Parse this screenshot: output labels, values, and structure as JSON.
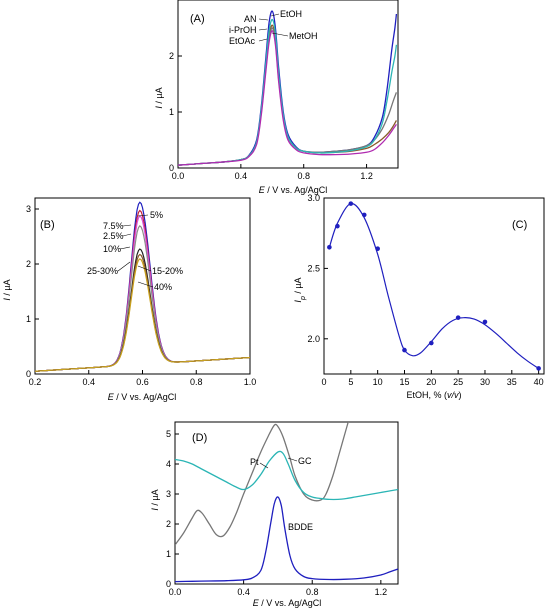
{
  "chart_data": [
    {
      "panel": "(A)",
      "type": "line",
      "xlim": [
        0.0,
        1.4
      ],
      "ylim": [
        0.0,
        3.0
      ],
      "xticks": [
        "0.0",
        "0.4",
        "0.8",
        "1.2"
      ],
      "yticks": [
        "0",
        "1",
        "2"
      ],
      "xlabel": {
        "var": "E",
        "rest": " / V vs. Ag/AgCl"
      },
      "ylabel": {
        "var": "I",
        "rest": " / µA"
      },
      "series": [
        {
          "name": "EtOH",
          "color": "#1f1fbf",
          "x": [
            0.0,
            0.1,
            0.2,
            0.3,
            0.4,
            0.45,
            0.5,
            0.53,
            0.56,
            0.58,
            0.6,
            0.62,
            0.64,
            0.67,
            0.7,
            0.75,
            0.8,
            0.9,
            1.0,
            1.1,
            1.2,
            1.25,
            1.3,
            1.33,
            1.36,
            1.38,
            1.39
          ],
          "y": [
            0.05,
            0.07,
            0.09,
            0.11,
            0.15,
            0.22,
            0.5,
            1.1,
            2.0,
            2.6,
            2.8,
            2.5,
            1.8,
            1.0,
            0.6,
            0.38,
            0.3,
            0.28,
            0.3,
            0.33,
            0.4,
            0.55,
            0.9,
            1.4,
            2.1,
            2.5,
            2.75
          ]
        },
        {
          "name": "AN",
          "color": "#8a5a2b",
          "x": [
            0.0,
            0.1,
            0.2,
            0.3,
            0.4,
            0.45,
            0.5,
            0.53,
            0.56,
            0.58,
            0.6,
            0.62,
            0.64,
            0.67,
            0.7,
            0.75,
            0.8,
            0.9,
            1.0,
            1.1,
            1.2,
            1.25,
            1.3,
            1.34,
            1.37,
            1.39
          ],
          "y": [
            0.05,
            0.07,
            0.09,
            0.11,
            0.15,
            0.21,
            0.45,
            1.0,
            1.85,
            2.35,
            2.55,
            2.3,
            1.65,
            0.9,
            0.55,
            0.36,
            0.3,
            0.27,
            0.28,
            0.3,
            0.35,
            0.42,
            0.52,
            0.63,
            0.75,
            0.85
          ]
        },
        {
          "name": "i-PrOH",
          "color": "#777777",
          "x": [
            0.0,
            0.1,
            0.2,
            0.3,
            0.4,
            0.45,
            0.5,
            0.53,
            0.56,
            0.58,
            0.6,
            0.62,
            0.64,
            0.67,
            0.7,
            0.75,
            0.8,
            0.9,
            1.0,
            1.1,
            1.2,
            1.25,
            1.3,
            1.34,
            1.37,
            1.39
          ],
          "y": [
            0.05,
            0.07,
            0.09,
            0.11,
            0.15,
            0.21,
            0.45,
            1.0,
            1.8,
            2.3,
            2.5,
            2.25,
            1.6,
            0.9,
            0.55,
            0.36,
            0.3,
            0.28,
            0.3,
            0.33,
            0.4,
            0.5,
            0.7,
            0.95,
            1.2,
            1.35
          ]
        },
        {
          "name": "MetOH",
          "color": "#2bb5b5",
          "x": [
            0.0,
            0.1,
            0.2,
            0.3,
            0.4,
            0.45,
            0.5,
            0.53,
            0.56,
            0.58,
            0.6,
            0.62,
            0.64,
            0.67,
            0.7,
            0.75,
            0.8,
            0.9,
            1.0,
            1.1,
            1.2,
            1.25,
            1.3,
            1.33,
            1.36,
            1.38,
            1.39
          ],
          "y": [
            0.05,
            0.07,
            0.09,
            0.11,
            0.15,
            0.21,
            0.46,
            1.05,
            1.9,
            2.45,
            2.65,
            2.4,
            1.7,
            0.95,
            0.56,
            0.36,
            0.3,
            0.27,
            0.28,
            0.31,
            0.38,
            0.5,
            0.8,
            1.2,
            1.7,
            2.0,
            2.2
          ]
        },
        {
          "name": "EtOAc",
          "color": "#b02bb0",
          "x": [
            0.0,
            0.1,
            0.2,
            0.3,
            0.4,
            0.45,
            0.5,
            0.53,
            0.56,
            0.58,
            0.6,
            0.62,
            0.64,
            0.67,
            0.7,
            0.75,
            0.8,
            0.9,
            1.0,
            1.1,
            1.2,
            1.25,
            1.3,
            1.34,
            1.37,
            1.39
          ],
          "y": [
            0.05,
            0.07,
            0.09,
            0.11,
            0.14,
            0.2,
            0.42,
            0.95,
            1.75,
            2.25,
            2.45,
            2.2,
            1.55,
            0.85,
            0.5,
            0.33,
            0.27,
            0.24,
            0.24,
            0.25,
            0.28,
            0.33,
            0.45,
            0.58,
            0.7,
            0.78
          ]
        }
      ],
      "annotations": [
        "AN",
        "EtOH",
        "i-PrOH",
        "MetOH",
        "EtOAc"
      ]
    },
    {
      "panel": "(B)",
      "type": "line",
      "xlim": [
        0.2,
        1.0
      ],
      "ylim": [
        0.0,
        3.2
      ],
      "xticks": [
        "0.2",
        "0.4",
        "0.6",
        "0.8",
        "1.0"
      ],
      "yticks": [
        "0",
        "1",
        "2",
        "3"
      ],
      "xlabel": {
        "var": "E",
        "rest": " / V vs. Ag/AgCl"
      },
      "ylabel": {
        "var": "I",
        "rest": " / µA"
      },
      "series": [
        {
          "name": "5%",
          "color": "#1f1fbf",
          "peak": 3.05
        },
        {
          "name": "7.5%",
          "color": "#c41e3a",
          "peak": 2.9
        },
        {
          "name": "2.5%",
          "color": "#d94fd9",
          "peak": 2.8
        },
        {
          "name": "10%",
          "color": "#8c8c8c",
          "peak": 2.62
        },
        {
          "name": "25-30%",
          "color": "#222222",
          "peak": 2.2
        },
        {
          "name": "15-20%",
          "color": "#8a5a2b",
          "peak": 2.1
        },
        {
          "name": "40%",
          "color": "#c8a21e",
          "peak": 2.02
        }
      ],
      "peak_x": 0.59,
      "annotations": [
        "5%",
        "7.5%",
        "2.5%",
        "10%",
        "25-30%",
        "15-20%",
        "40%"
      ]
    },
    {
      "panel": "(C)",
      "type": "scatter",
      "xlim": [
        0,
        41
      ],
      "ylim": [
        1.75,
        3.0
      ],
      "xticks": [
        "0",
        "5",
        "10",
        "15",
        "20",
        "25",
        "30",
        "35",
        "40"
      ],
      "yticks": [
        "2.0",
        "2.5",
        "3.0"
      ],
      "xlabel": {
        "prefix": "EtOH, % (",
        "italic": "v/v",
        "suffix": ")"
      },
      "ylabel": {
        "var": "I",
        "sub": "p",
        "rest": " / µA"
      },
      "color": "#1f1fbf",
      "points": {
        "x": [
          1,
          2.5,
          5,
          7.5,
          10,
          15,
          20,
          25,
          30,
          40
        ],
        "y": [
          2.65,
          2.8,
          2.96,
          2.88,
          2.64,
          1.92,
          1.97,
          2.15,
          2.12,
          1.79
        ]
      },
      "fit": {
        "x": [
          1,
          2.5,
          5,
          7.5,
          10,
          12,
          14,
          15,
          16.5,
          18,
          20,
          22,
          24,
          26,
          28,
          30,
          32,
          34,
          36,
          38,
          40
        ],
        "y": [
          2.65,
          2.82,
          2.96,
          2.86,
          2.6,
          2.3,
          2.02,
          1.92,
          1.88,
          1.9,
          1.98,
          2.07,
          2.13,
          2.15,
          2.14,
          2.1,
          2.04,
          1.97,
          1.9,
          1.84,
          1.79
        ]
      }
    },
    {
      "panel": "(D)",
      "type": "line",
      "xlim": [
        0.0,
        1.3
      ],
      "ylim": [
        0.0,
        5.4
      ],
      "xticks": [
        "0.0",
        "0.4",
        "0.8",
        "1.2"
      ],
      "yticks": [
        "0",
        "1",
        "2",
        "3",
        "4",
        "5"
      ],
      "xlabel": {
        "var": "E",
        "rest": " / V vs. Ag/AgCl"
      },
      "ylabel": {
        "var": "I",
        "rest": " / µA"
      },
      "series": [
        {
          "name": "Pt",
          "color": "#777777",
          "x": [
            0.0,
            0.05,
            0.1,
            0.13,
            0.16,
            0.2,
            0.24,
            0.28,
            0.32,
            0.36,
            0.4,
            0.45,
            0.5,
            0.55,
            0.58,
            0.6,
            0.63,
            0.67,
            0.7,
            0.75,
            0.8,
            0.85,
            0.88,
            0.92,
            0.96,
            1.0,
            1.03
          ],
          "y": [
            1.3,
            1.7,
            2.2,
            2.45,
            2.35,
            2.0,
            1.65,
            1.6,
            1.9,
            2.4,
            3.0,
            3.7,
            4.4,
            5.0,
            5.3,
            5.25,
            4.9,
            4.2,
            3.6,
            3.0,
            2.8,
            2.8,
            3.0,
            3.6,
            4.4,
            5.2,
            5.8
          ]
        },
        {
          "name": "GC",
          "color": "#2bb5b5",
          "x": [
            0.0,
            0.05,
            0.1,
            0.15,
            0.2,
            0.25,
            0.3,
            0.35,
            0.4,
            0.45,
            0.5,
            0.55,
            0.6,
            0.63,
            0.66,
            0.7,
            0.75,
            0.8,
            0.85,
            0.9,
            0.95,
            1.0,
            1.05,
            1.1,
            1.15,
            1.2,
            1.25,
            1.3
          ],
          "y": [
            4.15,
            4.1,
            4.0,
            3.85,
            3.7,
            3.55,
            3.4,
            3.25,
            3.15,
            3.3,
            3.65,
            4.1,
            4.4,
            4.35,
            4.0,
            3.45,
            3.05,
            2.9,
            2.85,
            2.82,
            2.82,
            2.85,
            2.9,
            2.95,
            3.0,
            3.05,
            3.1,
            3.15
          ]
        },
        {
          "name": "BDDE",
          "color": "#1f1fbf",
          "x": [
            0.0,
            0.1,
            0.2,
            0.3,
            0.4,
            0.45,
            0.5,
            0.53,
            0.56,
            0.58,
            0.6,
            0.62,
            0.64,
            0.67,
            0.7,
            0.75,
            0.8,
            0.9,
            1.0,
            1.1,
            1.2,
            1.25,
            1.3
          ],
          "y": [
            0.08,
            0.09,
            0.1,
            0.11,
            0.14,
            0.2,
            0.45,
            1.1,
            2.1,
            2.7,
            2.9,
            2.6,
            1.85,
            0.95,
            0.5,
            0.25,
            0.18,
            0.15,
            0.16,
            0.2,
            0.3,
            0.4,
            0.5
          ]
        }
      ],
      "annotations": [
        "Pt",
        "GC",
        "BDDE"
      ]
    }
  ]
}
